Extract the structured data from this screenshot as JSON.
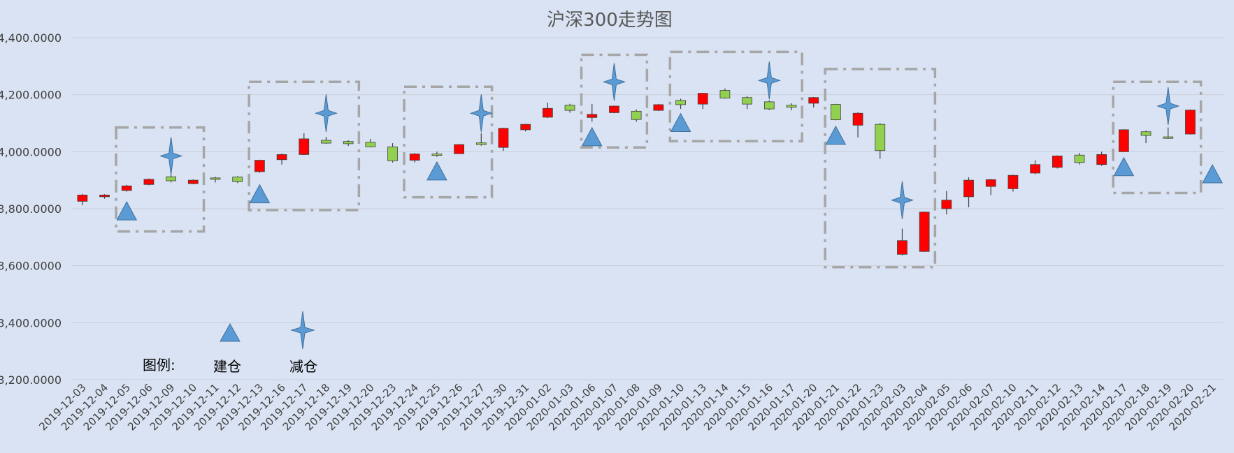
{
  "chart_data": {
    "type": "candlestick",
    "title": "沪深300走势图",
    "xlabel": "",
    "ylabel": "",
    "ylim": [
      3200,
      4400
    ],
    "yticks": [
      "3,200.0000",
      "3,400.0000",
      "3,600.0000",
      "3,800.0000",
      "4,000.0000",
      "4,200.0000",
      "4,400.0000"
    ],
    "grid": true,
    "up_color": "#ff0000",
    "down_color": "#92d050",
    "marker_color": "#5b9bd5",
    "legend": {
      "title": "图例:",
      "buy": "建仓",
      "sell": "减仓",
      "placement": "bottom-left"
    },
    "candles": [
      {
        "date": "2019-12-03",
        "open": 3826,
        "close": 3848,
        "high": 3852,
        "low": 3812
      },
      {
        "date": "2019-12-04",
        "open": 3842,
        "close": 3848,
        "high": 3851,
        "low": 3835
      },
      {
        "date": "2019-12-05",
        "open": 3864,
        "close": 3880,
        "high": 3884,
        "low": 3860
      },
      {
        "date": "2019-12-06",
        "open": 3885,
        "close": 3903,
        "high": 3906,
        "low": 3882
      },
      {
        "date": "2019-12-09",
        "open": 3912,
        "close": 3898,
        "high": 3920,
        "low": 3892
      },
      {
        "date": "2019-12-10",
        "open": 3888,
        "close": 3900,
        "high": 3903,
        "low": 3886
      },
      {
        "date": "2019-12-11",
        "open": 3908,
        "close": 3903,
        "high": 3912,
        "low": 3892
      },
      {
        "date": "2019-12-12",
        "open": 3911,
        "close": 3895,
        "high": 3914,
        "low": 3890
      },
      {
        "date": "2019-12-13",
        "open": 3930,
        "close": 3970,
        "high": 3972,
        "low": 3926
      },
      {
        "date": "2019-12-16",
        "open": 3972,
        "close": 3990,
        "high": 3994,
        "low": 3955
      },
      {
        "date": "2019-12-17",
        "open": 3990,
        "close": 4045,
        "high": 4065,
        "low": 3988
      },
      {
        "date": "2019-12-18",
        "open": 4040,
        "close": 4030,
        "high": 4052,
        "low": 4028
      },
      {
        "date": "2019-12-19",
        "open": 4036,
        "close": 4028,
        "high": 4040,
        "low": 4020
      },
      {
        "date": "2019-12-20",
        "open": 4033,
        "close": 4017,
        "high": 4045,
        "low": 4015
      },
      {
        "date": "2019-12-23",
        "open": 4017,
        "close": 3968,
        "high": 4030,
        "low": 3962
      },
      {
        "date": "2019-12-24",
        "open": 3970,
        "close": 3992,
        "high": 3995,
        "low": 3962
      },
      {
        "date": "2019-12-25",
        "open": 3992,
        "close": 3990,
        "high": 4000,
        "low": 3982
      },
      {
        "date": "2019-12-26",
        "open": 3993,
        "close": 4025,
        "high": 4027,
        "low": 3992
      },
      {
        "date": "2019-12-27",
        "open": 4031,
        "close": 4025,
        "high": 4065,
        "low": 4021
      },
      {
        "date": "2019-12-30",
        "open": 4015,
        "close": 4082,
        "high": 4084,
        "low": 4003
      },
      {
        "date": "2019-12-31",
        "open": 4077,
        "close": 4096,
        "high": 4098,
        "low": 4071
      },
      {
        "date": "2020-01-02",
        "open": 4121,
        "close": 4152,
        "high": 4172,
        "low": 4118
      },
      {
        "date": "2020-01-03",
        "open": 4163,
        "close": 4145,
        "high": 4168,
        "low": 4137
      },
      {
        "date": "2020-01-06",
        "open": 4120,
        "close": 4131,
        "high": 4168,
        "low": 4105
      },
      {
        "date": "2020-01-07",
        "open": 4137,
        "close": 4160,
        "high": 4162,
        "low": 4135
      },
      {
        "date": "2020-01-08",
        "open": 4142,
        "close": 4113,
        "high": 4148,
        "low": 4105
      },
      {
        "date": "2020-01-09",
        "open": 4145,
        "close": 4165,
        "high": 4168,
        "low": 4143
      },
      {
        "date": "2020-01-10",
        "open": 4180,
        "close": 4165,
        "high": 4186,
        "low": 4150
      },
      {
        "date": "2020-01-13",
        "open": 4167,
        "close": 4205,
        "high": 4206,
        "low": 4150
      },
      {
        "date": "2020-01-14",
        "open": 4215,
        "close": 4188,
        "high": 4222,
        "low": 4186
      },
      {
        "date": "2020-01-15",
        "open": 4190,
        "close": 4167,
        "high": 4195,
        "low": 4150
      },
      {
        "date": "2020-01-16",
        "open": 4175,
        "close": 4150,
        "high": 4180,
        "low": 4146
      },
      {
        "date": "2020-01-17",
        "open": 4163,
        "close": 4156,
        "high": 4170,
        "low": 4145
      },
      {
        "date": "2020-01-20",
        "open": 4170,
        "close": 4190,
        "high": 4192,
        "low": 4155
      },
      {
        "date": "2020-01-21",
        "open": 4166,
        "close": 4112,
        "high": 4168,
        "low": 4110
      },
      {
        "date": "2020-01-22",
        "open": 4093,
        "close": 4135,
        "high": 4138,
        "low": 4050
      },
      {
        "date": "2020-01-23",
        "open": 4096,
        "close": 4004,
        "high": 4100,
        "low": 3975
      },
      {
        "date": "2020-02-03",
        "open": 3640,
        "close": 3688,
        "high": 3730,
        "low": 3636
      },
      {
        "date": "2020-02-04",
        "open": 3650,
        "close": 3788,
        "high": 3790,
        "low": 3648
      },
      {
        "date": "2020-02-05",
        "open": 3800,
        "close": 3830,
        "high": 3862,
        "low": 3780
      },
      {
        "date": "2020-02-06",
        "open": 3842,
        "close": 3900,
        "high": 3910,
        "low": 3805
      },
      {
        "date": "2020-02-07",
        "open": 3878,
        "close": 3902,
        "high": 3904,
        "low": 3848
      },
      {
        "date": "2020-02-10",
        "open": 3870,
        "close": 3917,
        "high": 3919,
        "low": 3860
      },
      {
        "date": "2020-02-11",
        "open": 3925,
        "close": 3955,
        "high": 3970,
        "low": 3921
      },
      {
        "date": "2020-02-12",
        "open": 3945,
        "close": 3985,
        "high": 3987,
        "low": 3941
      },
      {
        "date": "2020-02-13",
        "open": 3988,
        "close": 3962,
        "high": 3996,
        "low": 3955
      },
      {
        "date": "2020-02-14",
        "open": 3955,
        "close": 3990,
        "high": 4000,
        "low": 3950
      },
      {
        "date": "2020-02-17",
        "open": 4000,
        "close": 4077,
        "high": 4079,
        "low": 3998
      },
      {
        "date": "2020-02-18",
        "open": 4070,
        "close": 4057,
        "high": 4074,
        "low": 4030
      },
      {
        "date": "2020-02-19",
        "open": 4052,
        "close": 4047,
        "high": 4085,
        "low": 4045
      },
      {
        "date": "2020-02-20",
        "open": 4062,
        "close": 4146,
        "high": 4148,
        "low": 4060
      },
      {
        "date": "2020-02-21",
        "open": null,
        "close": null,
        "high": null,
        "low": null
      }
    ],
    "buy_signals": [
      {
        "date": "2019-12-05",
        "value": 3790
      },
      {
        "date": "2019-12-13",
        "value": 3850
      },
      {
        "date": "2019-12-25",
        "value": 3930
      },
      {
        "date": "2020-01-06",
        "value": 4050
      },
      {
        "date": "2020-01-10",
        "value": 4100
      },
      {
        "date": "2020-01-21",
        "value": 4055
      },
      {
        "date": "2020-02-17",
        "value": 3945
      },
      {
        "date": "2020-02-21",
        "value": 3920
      }
    ],
    "sell_signals": [
      {
        "date": "2019-12-09",
        "value": 3985
      },
      {
        "date": "2019-12-18",
        "value": 4135
      },
      {
        "date": "2019-12-27",
        "value": 4135
      },
      {
        "date": "2020-01-07",
        "value": 4245
      },
      {
        "date": "2020-01-16",
        "value": 4250
      },
      {
        "date": "2020-02-03",
        "value": 3830
      },
      {
        "date": "2020-02-19",
        "value": 4160
      }
    ],
    "trade_boxes": [
      {
        "start": "2019-12-05",
        "end": "2019-12-10",
        "low": 3720,
        "high": 4085
      },
      {
        "start": "2019-12-13",
        "end": "2019-12-19",
        "low": 3795,
        "high": 4245
      },
      {
        "start": "2019-12-24",
        "end": "2019-12-27",
        "low": 3840,
        "high": 4228
      },
      {
        "start": "2020-01-06",
        "end": "2020-01-08",
        "low": 4015,
        "high": 4340
      },
      {
        "start": "2020-01-10",
        "end": "2020-01-17",
        "low": 4037,
        "high": 4350
      },
      {
        "start": "2020-01-21",
        "end": "2020-02-04",
        "low": 3595,
        "high": 4290
      },
      {
        "start": "2020-02-17",
        "end": "2020-02-20",
        "low": 3855,
        "high": 4245
      }
    ]
  }
}
